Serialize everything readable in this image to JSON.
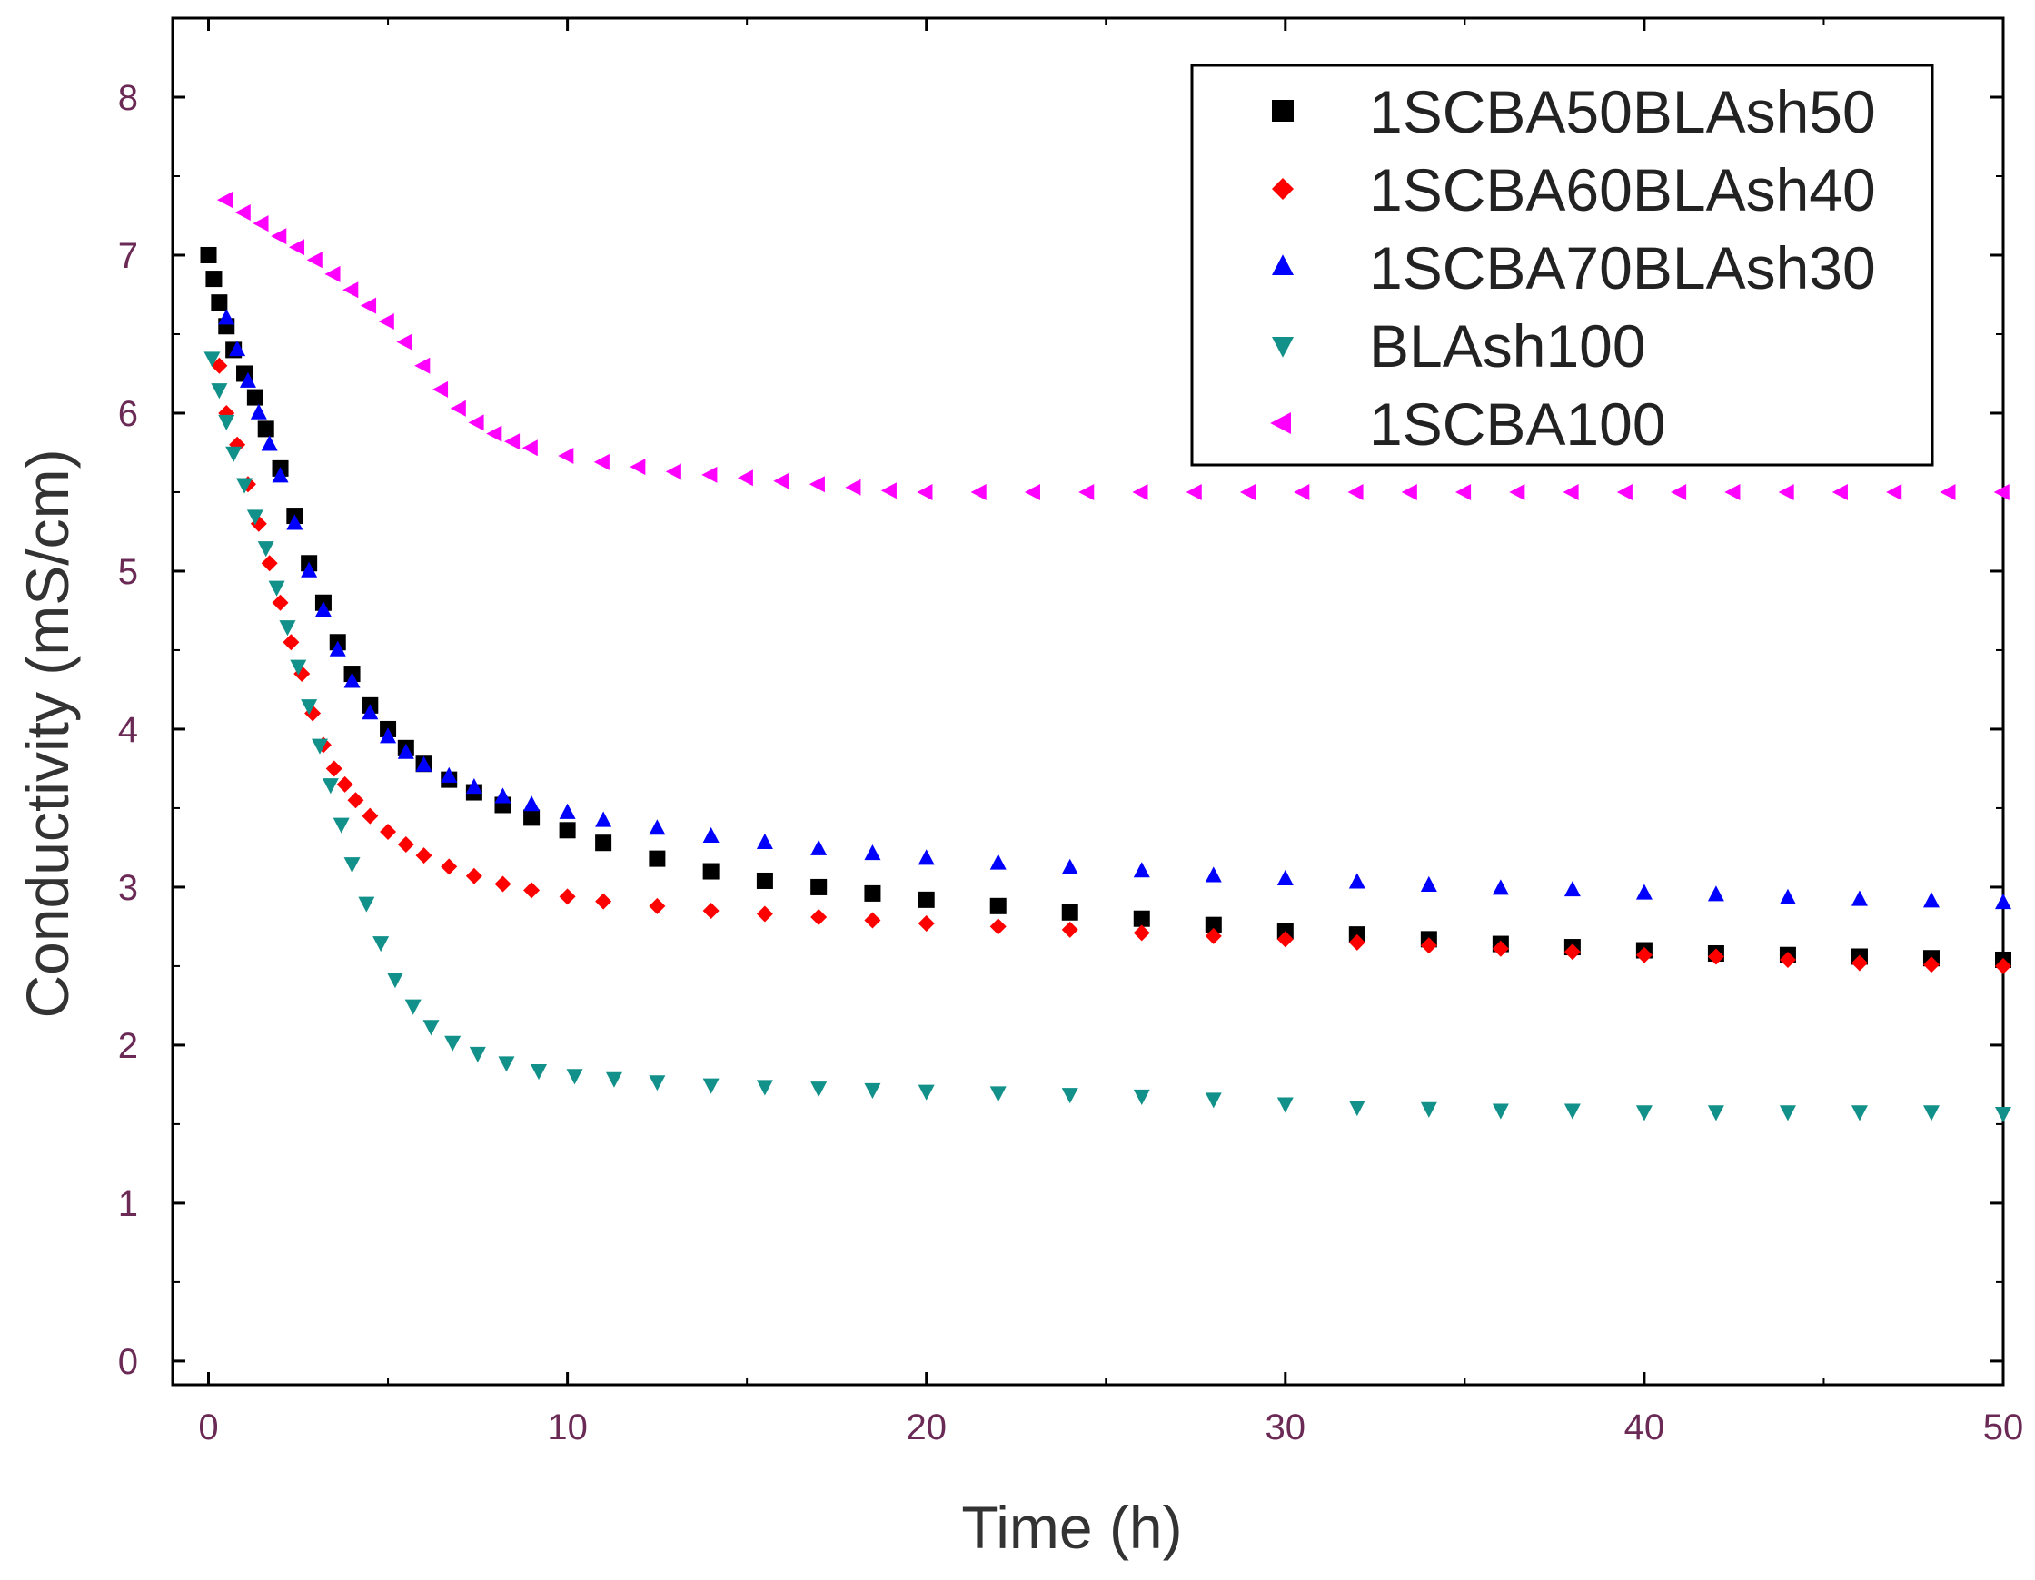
{
  "chart_data": {
    "type": "scatter",
    "title": "",
    "xlabel": "Time (h)",
    "ylabel": "Conductivity (mS/cm)",
    "xlim": [
      -1,
      50
    ],
    "ylim": [
      -0.15,
      8.5
    ],
    "xticks": [
      0,
      10,
      20,
      30,
      40,
      50
    ],
    "yticks": [
      0,
      1,
      2,
      3,
      4,
      5,
      6,
      7,
      8
    ],
    "xtick_labels": [
      "0",
      "10",
      "20",
      "30",
      "40",
      "50"
    ],
    "ytick_labels": [
      "0",
      "1",
      "2",
      "3",
      "4",
      "5",
      "6",
      "7",
      "8"
    ],
    "grid": false,
    "legend_position": "top-right",
    "series": [
      {
        "name": "1SCBA50BLAsh50",
        "marker": "square",
        "color": "#000000",
        "x": [
          0,
          0.15,
          0.3,
          0.5,
          0.7,
          1.0,
          1.3,
          1.6,
          2.0,
          2.4,
          2.8,
          3.2,
          3.6,
          4.0,
          4.5,
          5.0,
          5.5,
          6.0,
          6.7,
          7.4,
          8.2,
          9.0,
          10.0,
          11.0,
          12.5,
          14.0,
          15.5,
          17.0,
          18.5,
          20.0,
          22.0,
          24.0,
          26.0,
          28.0,
          30.0,
          32.0,
          34.0,
          36.0,
          38.0,
          40.0,
          42.0,
          44.0,
          46.0,
          48.0,
          50.0
        ],
        "y": [
          7.0,
          6.85,
          6.7,
          6.55,
          6.4,
          6.25,
          6.1,
          5.9,
          5.65,
          5.35,
          5.05,
          4.8,
          4.55,
          4.35,
          4.15,
          4.0,
          3.88,
          3.78,
          3.68,
          3.6,
          3.52,
          3.44,
          3.36,
          3.28,
          3.18,
          3.1,
          3.04,
          3.0,
          2.96,
          2.92,
          2.88,
          2.84,
          2.8,
          2.76,
          2.72,
          2.7,
          2.67,
          2.64,
          2.62,
          2.6,
          2.58,
          2.57,
          2.56,
          2.55,
          2.54
        ]
      },
      {
        "name": "1SCBA60BLAsh40",
        "marker": "diamond",
        "color": "#ff0000",
        "x": [
          0.3,
          0.5,
          0.8,
          1.1,
          1.4,
          1.7,
          2.0,
          2.3,
          2.6,
          2.9,
          3.2,
          3.5,
          3.8,
          4.1,
          4.5,
          5.0,
          5.5,
          6.0,
          6.7,
          7.4,
          8.2,
          9.0,
          10.0,
          11.0,
          12.5,
          14.0,
          15.5,
          17.0,
          18.5,
          20.0,
          22.0,
          24.0,
          26.0,
          28.0,
          30.0,
          32.0,
          34.0,
          36.0,
          38.0,
          40.0,
          42.0,
          44.0,
          46.0,
          48.0,
          50.0
        ],
        "y": [
          6.3,
          6.0,
          5.8,
          5.55,
          5.3,
          5.05,
          4.8,
          4.55,
          4.35,
          4.1,
          3.9,
          3.75,
          3.65,
          3.55,
          3.45,
          3.35,
          3.27,
          3.2,
          3.13,
          3.07,
          3.02,
          2.98,
          2.94,
          2.91,
          2.88,
          2.85,
          2.83,
          2.81,
          2.79,
          2.77,
          2.75,
          2.73,
          2.71,
          2.69,
          2.67,
          2.65,
          2.63,
          2.61,
          2.59,
          2.57,
          2.56,
          2.54,
          2.52,
          2.51,
          2.5
        ]
      },
      {
        "name": "1SCBA70BLAsh30",
        "marker": "triangle-up",
        "color": "#0000ff",
        "x": [
          0.5,
          0.8,
          1.1,
          1.4,
          1.7,
          2.0,
          2.4,
          2.8,
          3.2,
          3.6,
          4.0,
          4.5,
          5.0,
          5.5,
          6.0,
          6.7,
          7.4,
          8.2,
          9.0,
          10.0,
          11.0,
          12.5,
          14.0,
          15.5,
          17.0,
          18.5,
          20.0,
          22.0,
          24.0,
          26.0,
          28.0,
          30.0,
          32.0,
          34.0,
          36.0,
          38.0,
          40.0,
          42.0,
          44.0,
          46.0,
          48.0,
          50.0
        ],
        "y": [
          6.6,
          6.4,
          6.2,
          6.0,
          5.8,
          5.6,
          5.3,
          5.0,
          4.75,
          4.5,
          4.3,
          4.1,
          3.95,
          3.85,
          3.77,
          3.7,
          3.63,
          3.57,
          3.52,
          3.47,
          3.42,
          3.37,
          3.32,
          3.28,
          3.24,
          3.21,
          3.18,
          3.15,
          3.12,
          3.1,
          3.07,
          3.05,
          3.03,
          3.01,
          2.99,
          2.98,
          2.96,
          2.95,
          2.93,
          2.92,
          2.91,
          2.9
        ]
      },
      {
        "name": "BLAsh100",
        "marker": "triangle-down",
        "color": "#11918a",
        "x": [
          0.1,
          0.3,
          0.5,
          0.7,
          1.0,
          1.3,
          1.6,
          1.9,
          2.2,
          2.5,
          2.8,
          3.1,
          3.4,
          3.7,
          4.0,
          4.4,
          4.8,
          5.2,
          5.7,
          6.2,
          6.8,
          7.5,
          8.3,
          9.2,
          10.2,
          11.3,
          12.5,
          14.0,
          15.5,
          17.0,
          18.5,
          20.0,
          22.0,
          24.0,
          26.0,
          28.0,
          30.0,
          32.0,
          34.0,
          36.0,
          38.0,
          40.0,
          42.0,
          44.0,
          46.0,
          48.0,
          50.0
        ],
        "y": [
          6.35,
          6.15,
          5.95,
          5.75,
          5.55,
          5.35,
          5.15,
          4.9,
          4.65,
          4.4,
          4.15,
          3.9,
          3.65,
          3.4,
          3.15,
          2.9,
          2.65,
          2.42,
          2.25,
          2.12,
          2.02,
          1.95,
          1.89,
          1.84,
          1.81,
          1.79,
          1.77,
          1.75,
          1.74,
          1.73,
          1.72,
          1.71,
          1.7,
          1.69,
          1.68,
          1.66,
          1.63,
          1.61,
          1.6,
          1.59,
          1.59,
          1.58,
          1.58,
          1.58,
          1.58,
          1.58,
          1.57
        ]
      },
      {
        "name": "1SCBA100",
        "marker": "triangle-left",
        "color": "#ff00ff",
        "x": [
          0.5,
          1.0,
          1.5,
          2.0,
          2.5,
          3.0,
          3.5,
          4.0,
          4.5,
          5.0,
          5.5,
          6.0,
          6.5,
          7.0,
          7.5,
          8.0,
          8.5,
          9.0,
          10.0,
          11.0,
          12.0,
          13.0,
          14.0,
          15.0,
          16.0,
          17.0,
          18.0,
          19.0,
          20.0,
          21.5,
          23.0,
          24.5,
          26.0,
          27.5,
          29.0,
          30.5,
          32.0,
          33.5,
          35.0,
          36.5,
          38.0,
          39.5,
          41.0,
          42.5,
          44.0,
          45.5,
          47.0,
          48.5,
          50.0
        ],
        "y": [
          7.35,
          7.27,
          7.2,
          7.12,
          7.05,
          6.97,
          6.88,
          6.78,
          6.68,
          6.58,
          6.45,
          6.3,
          6.15,
          6.03,
          5.94,
          5.87,
          5.82,
          5.78,
          5.73,
          5.69,
          5.66,
          5.63,
          5.61,
          5.59,
          5.57,
          5.55,
          5.53,
          5.51,
          5.5,
          5.5,
          5.5,
          5.5,
          5.5,
          5.5,
          5.5,
          5.5,
          5.5,
          5.5,
          5.5,
          5.5,
          5.5,
          5.5,
          5.5,
          5.5,
          5.5,
          5.5,
          5.5,
          5.5,
          5.5
        ]
      }
    ]
  }
}
